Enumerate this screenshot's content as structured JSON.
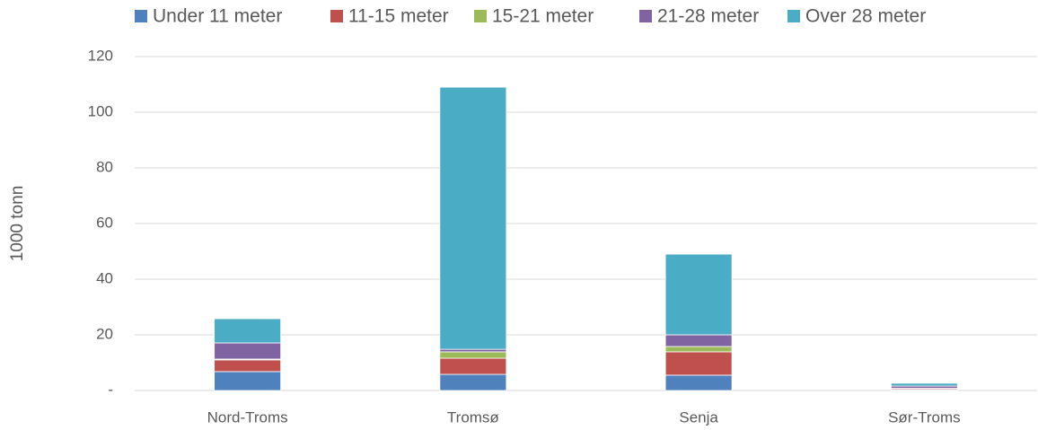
{
  "chart_data": {
    "type": "stacked_bar",
    "ylabel": "1000 tonn",
    "categories": [
      "Nord-Troms",
      "Tromsø",
      "Senja",
      "Sør-Troms"
    ],
    "series": [
      {
        "name": "Under 11 meter",
        "color": "#4f81bd",
        "values": [
          6.8,
          5.8,
          5.5,
          0.3
        ]
      },
      {
        "name": "11-15 meter",
        "color": "#c0504d",
        "values": [
          4.2,
          5.8,
          8.4,
          0.4
        ]
      },
      {
        "name": "15-21 meter",
        "color": "#9bbb59",
        "values": [
          0.3,
          2.3,
          1.9,
          0.1
        ]
      },
      {
        "name": "21-28 meter",
        "color": "#8064a2",
        "values": [
          5.8,
          0.9,
          4.2,
          0.8
        ]
      },
      {
        "name": "Over 28 meter",
        "color": "#4bacc6",
        "values": [
          8.7,
          94.2,
          29,
          1.0
        ]
      }
    ],
    "ylim": [
      0,
      120
    ],
    "yticks": [
      {
        "value": 0,
        "label": "-"
      },
      20,
      40,
      60,
      80,
      100,
      120
    ],
    "grid": true,
    "legend": "top"
  }
}
